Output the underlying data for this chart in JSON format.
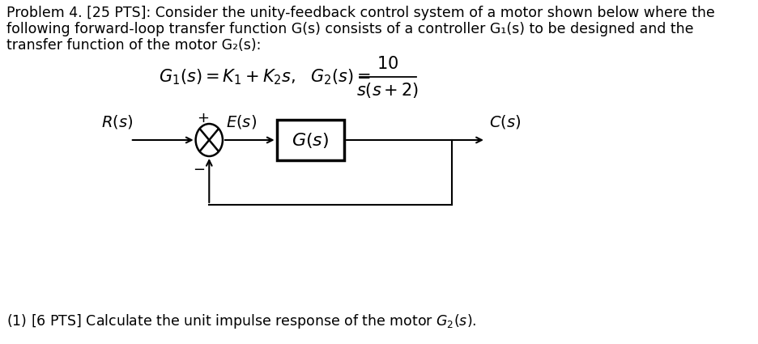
{
  "bg_color": "#ffffff",
  "text_color": "#000000",
  "title_line1": "Problem 4. [25 PTS]: Consider the unity-feedback control system of a motor shown below where the",
  "title_line2": "following forward-loop transfer function G(s) consists of a controller G₁(s) to be designed and the",
  "title_line3": "transfer function of the motor G₂(s):",
  "bottom_text": "(1) [6 PTS] Calculate the unit impulse response of the motor G₂(s).",
  "font_size_body": 12.5,
  "font_size_eq": 15,
  "font_size_diag": 14
}
